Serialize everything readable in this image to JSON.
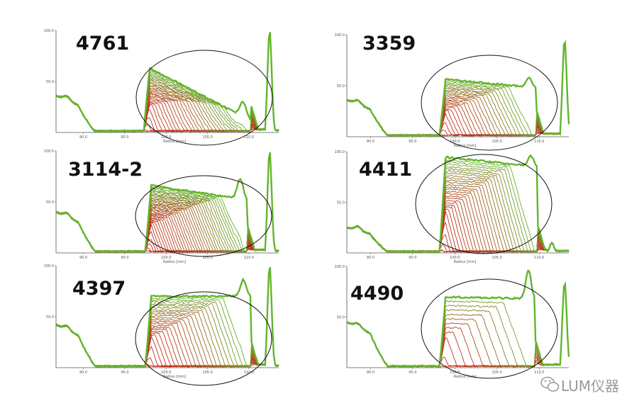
{
  "chart_data": [
    {
      "type": "line",
      "title": "4761",
      "xlabel": "Radius  [mm]",
      "xlim": [
        86.7,
        113.6
      ],
      "ylim": [
        0,
        100
      ],
      "ytick_labels": [
        "100.0",
        "50.0"
      ],
      "xtick_labels": [
        "90.0",
        "95.0",
        "100.0",
        "105.0",
        "110.0"
      ],
      "profile": {
        "base_left": 36,
        "edge": 97.3,
        "plateau_start": 66,
        "plateau_end": 12,
        "hump_end": 110.2,
        "hump_height": 26,
        "spike_x": 112.5,
        "spike_height": 100
      },
      "series": [
        {
          "values": "transmission profiles, red (early) to green (late)",
          "count": 30
        }
      ]
    },
    {
      "type": "line",
      "title": "3359",
      "xlabel": "Radius  [mm]",
      "xlim": [
        87.2,
        113.5
      ],
      "ylim": [
        0,
        100
      ],
      "ytick_labels": [
        "100.0",
        "50.0"
      ],
      "xtick_labels": [
        "90.0",
        "95.0",
        "100.0",
        "105.0",
        "110.0"
      ],
      "profile": {
        "base_left": 36,
        "edge": 98.2,
        "plateau_start": 57,
        "plateau_end": 48,
        "hump_end": 109.6,
        "hump_height": 57,
        "spike_x": 113,
        "spike_height": 95
      },
      "series": [
        {
          "count": 26
        }
      ]
    },
    {
      "type": "line",
      "title": "3114-2",
      "xlabel": "Radius  [mm]",
      "xlim": [
        86.7,
        113.6
      ],
      "ylim": [
        0,
        100
      ],
      "ytick_labels": [
        "100.0",
        "50.0"
      ],
      "xtick_labels": [
        "90.0",
        "95.0",
        "100.0",
        "105.0",
        "110.0"
      ],
      "profile": {
        "base_left": 40,
        "edge": 97.5,
        "plateau_start": 67,
        "plateau_end": 52,
        "hump_end": 109.8,
        "hump_height": 72,
        "spike_x": 112.5,
        "spike_height": 100
      },
      "series": [
        {
          "count": 40
        }
      ]
    },
    {
      "type": "line",
      "title": "4411",
      "xlabel": "Radius  [mm]",
      "xlim": [
        87.2,
        113.5
      ],
      "ylim": [
        0,
        100
      ],
      "ytick_labels": [
        "100.0",
        "50.0"
      ],
      "xtick_labels": [
        "90.0",
        "95.0",
        "100.0",
        "105.0",
        "110.0"
      ],
      "profile": {
        "base_left": 25,
        "edge": 98.2,
        "plateau_start": 95,
        "plateau_end": 85,
        "hump_end": 109.8,
        "hump_height": 95,
        "spike_x": 111.5,
        "spike_height": 10
      },
      "series": [
        {
          "count": 30
        }
      ]
    },
    {
      "type": "line",
      "title": "4397",
      "xlabel": "Radius  [mm]",
      "xlim": [
        86.7,
        113.6
      ],
      "ylim": [
        0,
        100
      ],
      "ytick_labels": [
        "100.0",
        "50.0"
      ],
      "xtick_labels": [
        "90.0",
        "95.0",
        "100.0",
        "105.0",
        "110.0"
      ],
      "profile": {
        "base_left": 42,
        "edge": 97.5,
        "plateau_start": 70,
        "plateau_end": 70,
        "hump_end": 110.2,
        "hump_height": 86,
        "spike_x": 112.5,
        "spike_height": 100
      },
      "series": [
        {
          "count": 26
        }
      ]
    },
    {
      "type": "line",
      "title": "4490",
      "xlabel": "Radius  [mm]",
      "xlim": [
        87.2,
        113.5
      ],
      "ylim": [
        0,
        100
      ],
      "ytick_labels": [
        "100.0",
        "50.0"
      ],
      "xtick_labels": [
        "90.0",
        "95.0",
        "100.0",
        "105.0",
        "110.0"
      ],
      "profile": {
        "base_left": 45,
        "edge": 98.2,
        "plateau_start": 70,
        "plateau_end": 68,
        "hump_end": 109.5,
        "hump_height": 96,
        "spike_x": 113,
        "spike_height": 85
      },
      "series": [
        {
          "count": 12
        }
      ]
    }
  ],
  "watermark": {
    "text": "LUM仪器",
    "icon": "wechat-icon"
  },
  "colors": {
    "early": "#c8281c",
    "late": "#63b52c",
    "axis": "#555555"
  }
}
